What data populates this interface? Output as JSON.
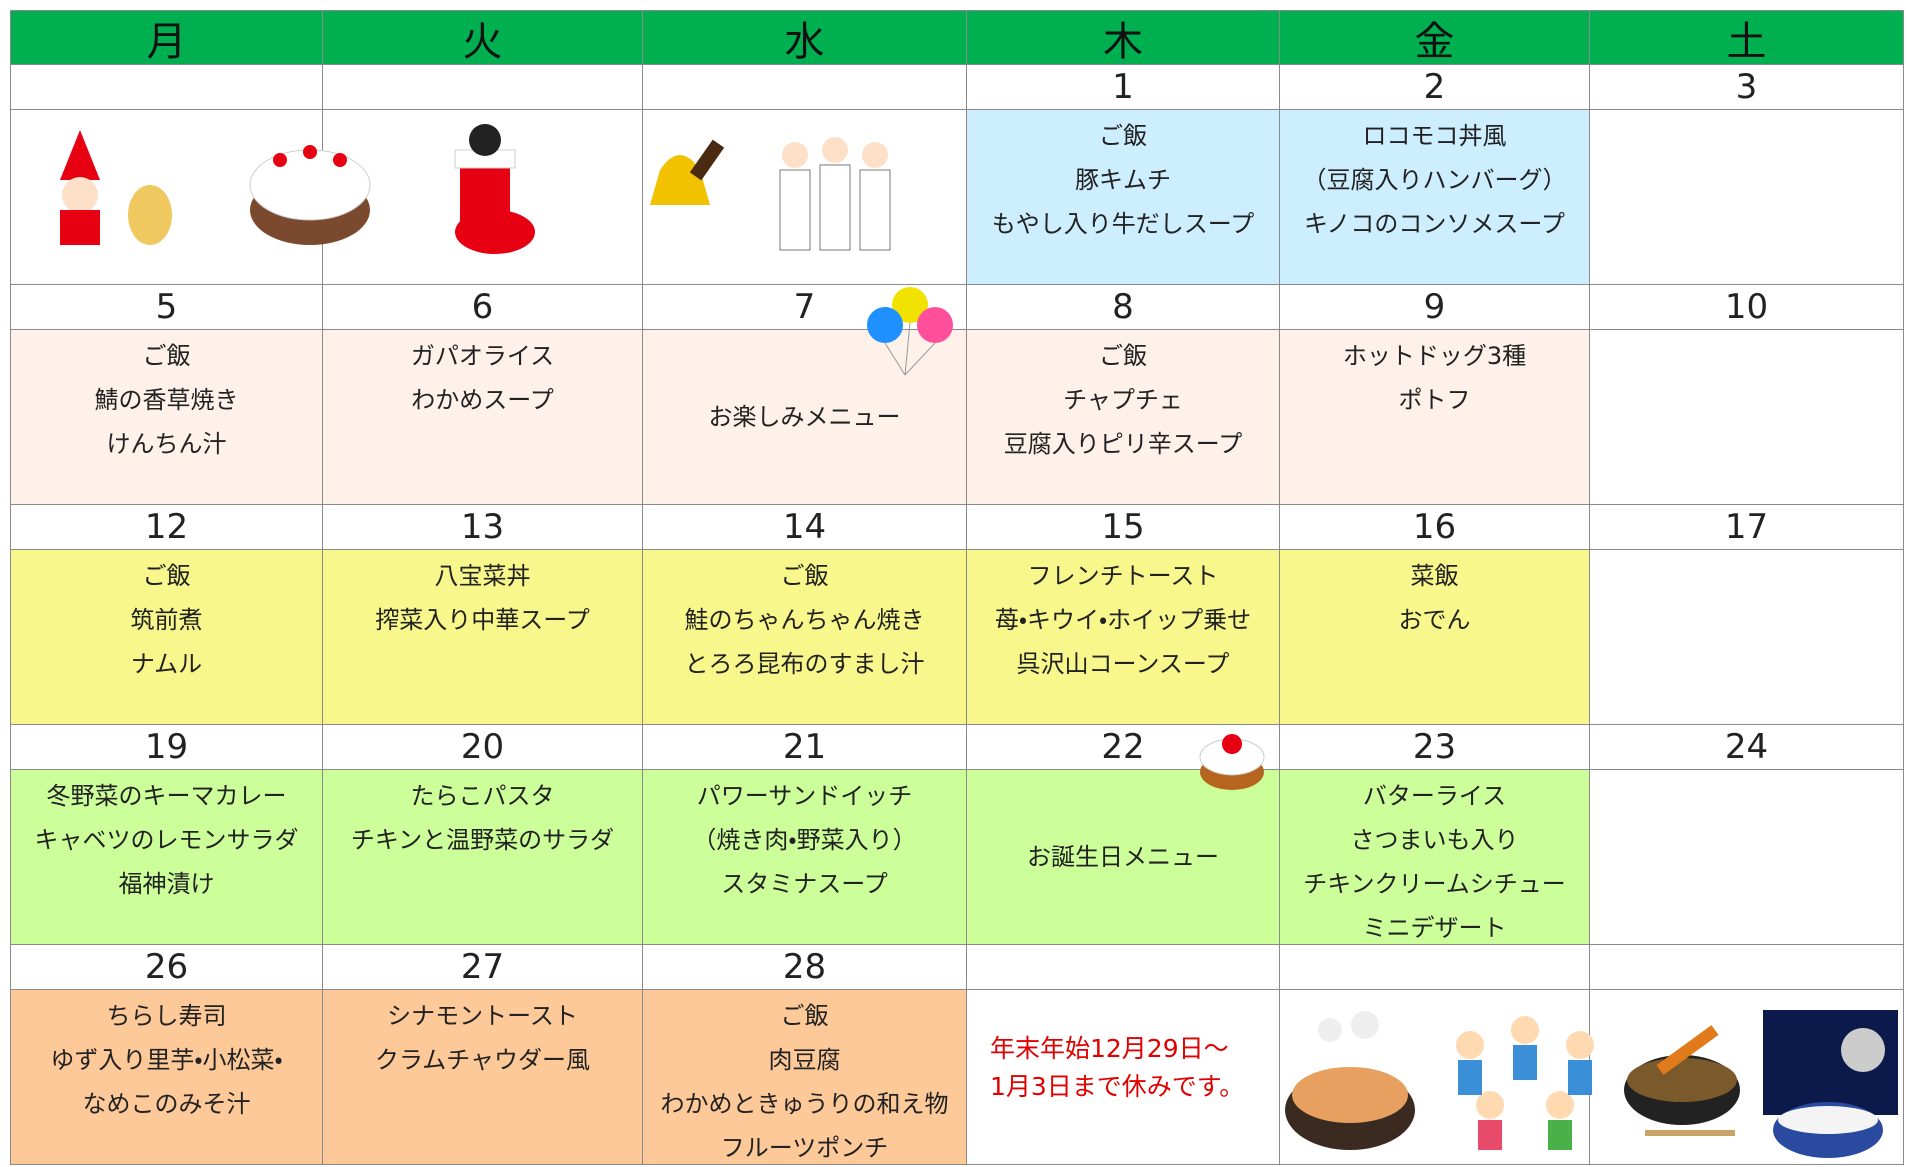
{
  "header": {
    "days": [
      "月",
      "火",
      "水",
      "木",
      "金",
      "土"
    ]
  },
  "weeks": [
    {
      "dates": [
        null,
        null,
        null,
        1,
        2,
        3
      ],
      "menus": [
        null,
        null,
        null,
        [
          "ご飯",
          "豚キムチ",
          "もやし入り牛だしスープ"
        ],
        [
          "ロコモコ丼風",
          "（豆腐入りハンバーグ）",
          "キノコのコンソメスープ"
        ],
        null
      ]
    },
    {
      "dates": [
        5,
        6,
        7,
        8,
        9,
        10
      ],
      "menus": [
        [
          "ご飯",
          "鯖の香草焼き",
          "けんちん汁"
        ],
        [
          "ガパオライス",
          "わかめスープ"
        ],
        [
          "お楽しみメニュー"
        ],
        [
          "ご飯",
          "チャプチェ",
          "豆腐入りピリ辛スープ"
        ],
        [
          "ホットドッグ3種",
          "ポトフ"
        ],
        null
      ]
    },
    {
      "dates": [
        12,
        13,
        14,
        15,
        16,
        17
      ],
      "menus": [
        [
          "ご飯",
          "筑前煮",
          "ナムル"
        ],
        [
          "八宝菜丼",
          "搾菜入り中華スープ"
        ],
        [
          "ご飯",
          "鮭のちゃんちゃん焼き",
          "とろろ昆布のすまし汁"
        ],
        [
          "フレンチトースト",
          "苺・キウイ・ホイップ乗せ",
          "呉沢山コーンスープ"
        ],
        [
          "菜飯",
          "おでん"
        ],
        null
      ]
    },
    {
      "dates": [
        19,
        20,
        21,
        22,
        23,
        24
      ],
      "menus": [
        [
          "冬野菜のキーマカレー",
          "キャベツのレモンサラダ",
          "福神漬け"
        ],
        [
          "たらこパスタ",
          "チキンと温野菜のサラダ"
        ],
        [
          "パワーサンドイッチ",
          "（焼き肉・野菜入り）",
          "スタミナスープ"
        ],
        [
          "お誕生日メニュー"
        ],
        [
          "バターライス",
          "さつまいも入り",
          "チキンクリームシチュー",
          "ミニデザート"
        ],
        null
      ]
    },
    {
      "dates": [
        26,
        27,
        28,
        null,
        null,
        null
      ],
      "menus": [
        [
          "ちらし寿司",
          "ゆず入り里芋・小松菜・",
          "なめこのみそ汁"
        ],
        [
          "シナモントースト",
          "クラムチャウダー風"
        ],
        [
          "ご飯",
          "肉豆腐",
          "わかめときゅうりの和え物",
          "フルーツポンチ"
        ],
        null,
        null,
        null
      ]
    }
  ],
  "note": [
    "年末年始12月29日～",
    "1月3日まで休みです。"
  ]
}
